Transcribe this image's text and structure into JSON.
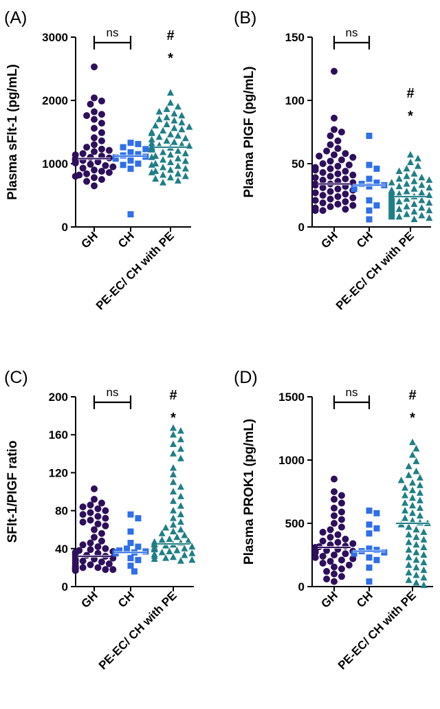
{
  "colors": {
    "GH": "#2e0f5c",
    "CH": "#2f6fe8",
    "PE": "#1f7f86",
    "axis": "#000000"
  },
  "chart_data": [
    {
      "panel": "(A)",
      "type": "scatter",
      "ylabel": "Plasma sFlt-1 (pg/mL)",
      "ylim": [
        0,
        3000
      ],
      "yticks": [
        0,
        1000,
        2000,
        3000
      ],
      "categories": [
        "GH",
        "CH",
        "PE-EC/ CH with PE"
      ],
      "comparison": {
        "from": "GH",
        "to": "CH",
        "label": "ns"
      },
      "significance": [
        "#",
        "*"
      ],
      "series": [
        {
          "name": "GH",
          "marker": "circle",
          "median": 1080,
          "values": [
            2530,
            2040,
            1990,
            1940,
            1820,
            1780,
            1760,
            1700,
            1640,
            1560,
            1490,
            1410,
            1360,
            1300,
            1260,
            1230,
            1210,
            1190,
            1160,
            1140,
            1120,
            1100,
            1090,
            1080,
            1070,
            1060,
            1050,
            1040,
            1030,
            1020,
            1010,
            990,
            970,
            950,
            930,
            900,
            880,
            860,
            840,
            820,
            800,
            780,
            750,
            720,
            650
          ]
        },
        {
          "name": "CH",
          "marker": "square",
          "median": 1120,
          "values": [
            1330,
            1310,
            1260,
            1230,
            1180,
            1150,
            1130,
            1110,
            1100,
            1080,
            1050,
            1000,
            980,
            920,
            200
          ]
        },
        {
          "name": "PE-EC/ CH with PE",
          "marker": "triangle",
          "median": 1260,
          "values": [
            2120,
            1960,
            1900,
            1860,
            1820,
            1790,
            1760,
            1730,
            1700,
            1680,
            1650,
            1620,
            1600,
            1580,
            1560,
            1540,
            1520,
            1500,
            1480,
            1460,
            1440,
            1420,
            1400,
            1380,
            1360,
            1340,
            1320,
            1300,
            1290,
            1280,
            1270,
            1260,
            1250,
            1240,
            1230,
            1220,
            1200,
            1180,
            1160,
            1140,
            1120,
            1100,
            1080,
            1060,
            1040,
            1020,
            1000,
            980,
            960,
            940,
            920,
            900,
            880,
            860,
            840,
            820,
            800,
            780,
            760,
            730,
            700
          ]
        }
      ]
    },
    {
      "panel": "(B)",
      "type": "scatter",
      "ylabel": "Plasma PIGF (pg/mL)",
      "ylim": [
        0,
        150
      ],
      "yticks": [
        0,
        50,
        100,
        150
      ],
      "categories": [
        "GH",
        "CH",
        "PE-EC/ CH with PE"
      ],
      "comparison": {
        "from": "GH",
        "to": "CH",
        "label": "ns"
      },
      "significance": [
        "#",
        "*"
      ],
      "series": [
        {
          "name": "GH",
          "marker": "circle",
          "median": 34,
          "values": [
            123,
            86,
            77,
            75,
            72,
            68,
            65,
            62,
            60,
            58,
            57,
            56,
            55,
            53,
            52,
            50,
            49,
            48,
            47,
            46,
            45,
            44,
            43,
            42,
            41,
            40,
            39,
            38,
            37,
            36,
            35,
            34,
            34,
            33,
            32,
            31,
            30,
            29,
            28,
            27,
            26,
            25,
            24,
            23,
            22,
            21,
            20,
            19,
            18,
            17,
            16,
            15,
            14,
            13,
            13
          ]
        },
        {
          "name": "CH",
          "marker": "square",
          "median": 33,
          "values": [
            72,
            49,
            46,
            38,
            35,
            34,
            33,
            32,
            31,
            30,
            21,
            17,
            13,
            6
          ]
        },
        {
          "name": "PE-EC/ CH with PE",
          "marker": "triangle",
          "median": 24,
          "values": [
            57,
            54,
            51,
            48,
            46,
            44,
            42,
            40,
            39,
            38,
            37,
            36,
            35,
            34,
            33,
            32,
            31,
            30,
            29,
            28,
            28,
            27,
            27,
            26,
            26,
            25,
            25,
            24,
            24,
            23,
            23,
            22,
            22,
            21,
            21,
            20,
            20,
            19,
            19,
            18,
            18,
            17,
            17,
            16,
            16,
            15,
            15,
            14,
            14,
            13,
            13,
            12,
            12,
            11,
            11,
            10,
            10,
            9,
            9,
            8,
            8,
            7,
            6
          ]
        }
      ]
    },
    {
      "panel": "(C)",
      "type": "scatter",
      "ylabel": "SFlt-1/PIGF ratio",
      "ylim": [
        0,
        200
      ],
      "yticks": [
        0,
        40,
        80,
        120,
        160,
        200
      ],
      "categories": [
        "GH",
        "CH",
        "PE-EC/ CH with PE"
      ],
      "comparison": {
        "from": "GH",
        "to": "CH",
        "label": "ns"
      },
      "significance": [
        "#",
        "*"
      ],
      "series": [
        {
          "name": "GH",
          "marker": "circle",
          "median": 32,
          "values": [
            103,
            92,
            88,
            86,
            84,
            82,
            80,
            78,
            76,
            74,
            72,
            70,
            68,
            66,
            64,
            60,
            56,
            52,
            48,
            46,
            44,
            42,
            40,
            39,
            38,
            37,
            36,
            35,
            34,
            33,
            32,
            31,
            30,
            29,
            28,
            27,
            26,
            25,
            24,
            23,
            22,
            21,
            20,
            20,
            19,
            19,
            18,
            18,
            17,
            17
          ]
        },
        {
          "name": "CH",
          "marker": "square",
          "median": 36,
          "values": [
            76,
            72,
            58,
            46,
            42,
            40,
            38,
            37,
            36,
            36,
            35,
            30,
            28,
            22,
            16
          ]
        },
        {
          "name": "PE-EC/ CH with PE",
          "marker": "triangle",
          "median": 45,
          "values": [
            167,
            164,
            160,
            155,
            150,
            145,
            140,
            135,
            125,
            118,
            110,
            105,
            100,
            95,
            90,
            85,
            80,
            76,
            72,
            68,
            65,
            62,
            60,
            58,
            56,
            54,
            52,
            50,
            49,
            48,
            47,
            46,
            45,
            44,
            44,
            43,
            42,
            41,
            40,
            40,
            39,
            38,
            37,
            36,
            35,
            34,
            33,
            32,
            31,
            30,
            29,
            28,
            27
          ]
        }
      ]
    },
    {
      "panel": "(D)",
      "type": "scatter",
      "ylabel": "Plasma PROK1 (pg/mL)",
      "ylim": [
        0,
        1500
      ],
      "yticks": [
        0,
        500,
        1000,
        1500
      ],
      "categories": [
        "GH",
        "CH",
        "PE-EC/ CH with PE"
      ],
      "comparison": {
        "from": "GH",
        "to": "CH",
        "label": "ns"
      },
      "significance": [
        "#",
        "*"
      ],
      "series": [
        {
          "name": "GH",
          "marker": "circle",
          "median": 310,
          "values": [
            850,
            750,
            720,
            690,
            660,
            620,
            590,
            560,
            530,
            500,
            470,
            450,
            430,
            410,
            390,
            375,
            360,
            350,
            340,
            330,
            320,
            315,
            310,
            305,
            300,
            295,
            290,
            285,
            280,
            275,
            270,
            260,
            250,
            240,
            230,
            220,
            210,
            200,
            185,
            170,
            155,
            140,
            120,
            100,
            80,
            60,
            40
          ]
        },
        {
          "name": "CH",
          "marker": "square",
          "median": 280,
          "values": [
            600,
            580,
            490,
            460,
            420,
            300,
            290,
            280,
            270,
            260,
            230,
            210,
            150,
            40
          ]
        },
        {
          "name": "PE-EC/ CH with PE",
          "marker": "triangle",
          "median": 500,
          "values": [
            1140,
            1090,
            1040,
            990,
            950,
            910,
            880,
            860,
            840,
            820,
            800,
            780,
            760,
            740,
            720,
            700,
            680,
            660,
            640,
            620,
            600,
            580,
            560,
            540,
            520,
            505,
            500,
            490,
            470,
            450,
            430,
            410,
            390,
            370,
            350,
            330,
            310,
            290,
            270,
            250,
            230,
            210,
            190,
            170,
            150,
            130,
            110,
            90,
            70,
            50,
            30,
            10
          ]
        }
      ]
    }
  ]
}
